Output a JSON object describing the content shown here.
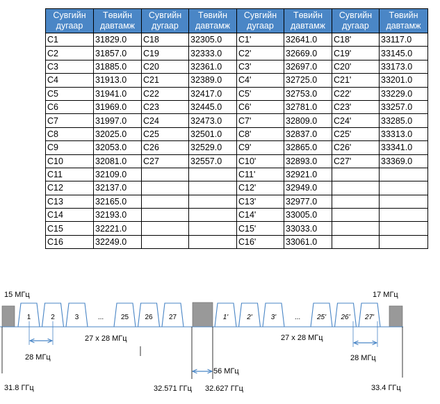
{
  "table": {
    "headers": [
      {
        "num": "Сувгийн\nдугаар",
        "freq": "Төвийн\nдавтамж"
      },
      {
        "num": "Сувгийн\nдугаар",
        "freq": "Төвийн\nдавтамж"
      },
      {
        "num": "Сувгийн\nдугаар",
        "freq": "Төвийн\nдавтамж"
      },
      {
        "num": "Сувгийн\nдугаар",
        "freq": "Төвийн\nдавтамж"
      }
    ],
    "rows": [
      [
        "C1",
        "31829.0",
        "C18",
        "32305.0",
        "C1'",
        "32641.0",
        "C18'",
        "33117.0"
      ],
      [
        "C2",
        "31857.0",
        "C19",
        "32333.0",
        "C2'",
        "32669.0",
        "C19'",
        "33145.0"
      ],
      [
        "C3",
        "31885.0",
        "C20",
        "32361.0",
        "C3'",
        "32697.0",
        "C20'",
        "33173.0"
      ],
      [
        "C4",
        "31913.0",
        "C21",
        "32389.0",
        "C4'",
        "32725.0",
        "C21'",
        "33201.0"
      ],
      [
        "C5",
        "31941.0",
        "C22",
        "32417.0",
        "C5'",
        "32753.0",
        "C22'",
        "33229.0"
      ],
      [
        "C6",
        "31969.0",
        "C23",
        "32445.0",
        "C6'",
        "32781.0",
        "C23'",
        "33257.0"
      ],
      [
        "C7",
        "31997.0",
        "C24",
        "32473.0",
        "C7'",
        "32809.0",
        "C24'",
        "33285.0"
      ],
      [
        "C8",
        "32025.0",
        "C25",
        "32501.0",
        "C8'",
        "32837.0",
        "C25'",
        "33313.0"
      ],
      [
        "C9",
        "32053.0",
        "C26",
        "32529.0",
        "C9'",
        "32865.0",
        "C26'",
        "33341.0"
      ],
      [
        "C10",
        "32081.0",
        "C27",
        "32557.0",
        "C10'",
        "32893.0",
        "C27'",
        "33369.0"
      ],
      [
        "C11",
        "32109.0",
        "",
        "",
        "C11'",
        "32921.0",
        "",
        ""
      ],
      [
        "C12",
        "32137.0",
        "",
        "",
        "C12'",
        "32949.0",
        "",
        ""
      ],
      [
        "C13",
        "32165.0",
        "",
        "",
        "C13'",
        "32977.0",
        "",
        ""
      ],
      [
        "C14",
        "32193.0",
        "",
        "",
        "C14'",
        "33005.0",
        "",
        ""
      ],
      [
        "C15",
        "32221.0",
        "",
        "",
        "C15'",
        "33033.0",
        "",
        ""
      ],
      [
        "C16",
        "32249.0",
        "",
        "",
        "C16'",
        "33061.0",
        "",
        ""
      ]
    ]
  },
  "diagram": {
    "guard_left": "15 МГц",
    "guard_right": "17 МГц",
    "left_channels": [
      "1",
      "2",
      "3",
      "...",
      "25",
      "26",
      "27"
    ],
    "right_channels": [
      "1'",
      "2'",
      "3'",
      "...",
      "25'",
      "26'",
      "27'"
    ],
    "spacing_left": "28 МГц",
    "spacing_right": "28 МГц",
    "span_left": "27 x 28 МГц",
    "span_right": "27 x 28 МГц",
    "center_gap": "56 МГц",
    "freq_start": "31.8 ГГц",
    "freq_left_end": "32.571 ГГц",
    "freq_right_start": "32.627 ГГц",
    "freq_end": "33.4 ГГц",
    "colors": {
      "table_header": "#4a86c6",
      "channel_line": "#4a86c6",
      "guard_fill": "#999999"
    }
  }
}
